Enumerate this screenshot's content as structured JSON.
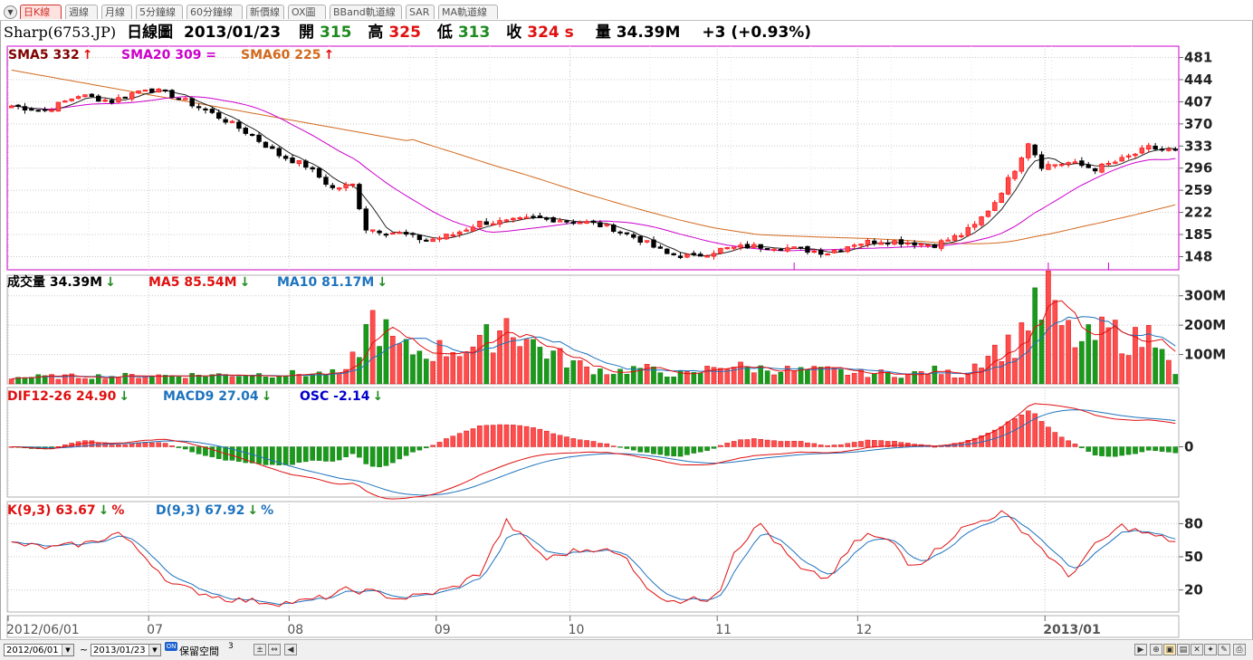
{
  "tabs": [
    "日K線",
    "週線",
    "月線",
    "5分鐘線",
    "60分鐘線",
    "新價線",
    "OX圖",
    "BBand軌道線",
    "SAR",
    "MA軌道線"
  ],
  "active_tab": 0,
  "info": {
    "symbol": "Sharp(6753.JP)",
    "chart_name": "日線圖",
    "date": "2013/01/23",
    "open_label": "開",
    "open": "315",
    "high_label": "高",
    "high": "325",
    "low_label": "低",
    "low": "313",
    "close_label": "收",
    "close": "324 s",
    "volume_label": "量",
    "volume": "34.39M",
    "change": "+3 (+0.93%)"
  },
  "legends": {
    "price": [
      {
        "text": "SMA5 332",
        "color": "#800000",
        "arrow": "up"
      },
      {
        "text": "SMA20 309 =",
        "color": "#cc00cc",
        "arrow": "none"
      },
      {
        "text": "SMA60 225",
        "color": "#d2691e",
        "arrow": "up"
      }
    ],
    "volume": [
      {
        "text": "成交量 34.39M",
        "color": "#000000",
        "arrow": "down"
      },
      {
        "text": "MA5 85.54M",
        "color": "#e01010",
        "arrow": "down"
      },
      {
        "text": "MA10 81.17M",
        "color": "#1e73be",
        "arrow": "down"
      }
    ],
    "macd": [
      {
        "text": "DIF12-26 24.90",
        "color": "#e01010",
        "arrow": "down"
      },
      {
        "text": "MACD9 27.04",
        "color": "#1e73be",
        "arrow": "down"
      },
      {
        "text": "OSC -2.14",
        "color": "#0000cc",
        "arrow": "down"
      }
    ],
    "kd": [
      {
        "text": "K(9,3) 63.67",
        "color": "#e01010",
        "arrow": "down",
        "suffix": "%"
      },
      {
        "text": "D(9,3) 67.92",
        "color": "#1e73be",
        "arrow": "down",
        "suffix": "%"
      }
    ]
  },
  "bottom": {
    "start_date": "2012/06/01",
    "tilde": "~",
    "end_date": "2013/01/23",
    "reserve_label": "保留空間",
    "reserve_value": "3",
    "badge": "ON"
  },
  "colors": {
    "up": "#ff0000",
    "down": "#000000",
    "vol_green": "#1a9a1a",
    "grid": "#c8c8c8",
    "price_border": "#cc00cc"
  },
  "chart_data": [
    {
      "type": "candlestick",
      "title": "Sharp(6753.JP) 日線圖",
      "x_ticks": [
        "2012/06/01",
        "07",
        "08",
        "09",
        "10",
        "11",
        "12",
        "2013/01"
      ],
      "y_ticks": [
        148,
        185,
        222,
        259,
        296,
        333,
        370,
        407,
        444,
        481
      ],
      "ylim": [
        126,
        500
      ],
      "series": [
        {
          "name": "SMA5",
          "values": []
        },
        {
          "name": "SMA20",
          "values": []
        },
        {
          "name": "SMA60",
          "values": []
        }
      ],
      "anchors": [
        [
          0,
          400
        ],
        [
          5,
          392
        ],
        [
          10,
          418
        ],
        [
          15,
          408
        ],
        [
          20,
          430
        ],
        [
          24,
          418
        ],
        [
          28,
          398
        ],
        [
          32,
          376
        ],
        [
          36,
          350
        ],
        [
          40,
          318
        ],
        [
          44,
          300
        ],
        [
          48,
          262
        ],
        [
          51,
          268
        ],
        [
          53,
          195
        ],
        [
          58,
          187
        ],
        [
          62,
          175
        ],
        [
          66,
          185
        ],
        [
          70,
          205
        ],
        [
          74,
          206
        ],
        [
          78,
          212
        ],
        [
          82,
          210
        ],
        [
          86,
          205
        ],
        [
          90,
          195
        ],
        [
          94,
          176
        ],
        [
          98,
          152
        ],
        [
          102,
          148
        ],
        [
          106,
          160
        ],
        [
          110,
          165
        ],
        [
          114,
          165
        ],
        [
          118,
          160
        ],
        [
          122,
          155
        ],
        [
          126,
          170
        ],
        [
          130,
          175
        ],
        [
          134,
          172
        ],
        [
          138,
          168
        ],
        [
          142,
          185
        ],
        [
          144,
          200
        ],
        [
          147,
          240
        ],
        [
          150,
          295
        ],
        [
          152,
          340
        ],
        [
          154,
          300
        ],
        [
          158,
          305
        ],
        [
          162,
          295
        ],
        [
          166,
          310
        ],
        [
          170,
          330
        ],
        [
          174,
          324
        ]
      ],
      "smoothing": "5-day moving average of closes (read from the figure)"
    },
    {
      "type": "bar",
      "title": "成交量",
      "y_ticks": [
        "100M",
        "200M",
        "300M"
      ],
      "ylim": [
        0,
        370
      ],
      "series": [
        {
          "name": "MA5",
          "values": []
        },
        {
          "name": "MA10",
          "values": []
        }
      ],
      "spikes": [
        [
          0,
          25
        ],
        [
          50,
          40
        ],
        [
          54,
          245
        ],
        [
          58,
          130
        ],
        [
          62,
          120
        ],
        [
          66,
          135
        ],
        [
          70,
          140
        ],
        [
          74,
          240
        ],
        [
          78,
          150
        ],
        [
          82,
          100
        ],
        [
          86,
          60
        ],
        [
          90,
          45
        ],
        [
          94,
          60
        ],
        [
          98,
          40
        ],
        [
          102,
          35
        ],
        [
          106,
          75
        ],
        [
          110,
          60
        ],
        [
          114,
          55
        ],
        [
          118,
          50
        ],
        [
          122,
          50
        ],
        [
          126,
          40
        ],
        [
          130,
          40
        ],
        [
          134,
          35
        ],
        [
          138,
          50
        ],
        [
          142,
          30
        ],
        [
          146,
          120
        ],
        [
          150,
          150
        ],
        [
          152,
          260
        ],
        [
          154,
          270
        ],
        [
          155,
          365
        ],
        [
          156,
          240
        ],
        [
          158,
          190
        ],
        [
          160,
          150
        ],
        [
          164,
          200
        ],
        [
          168,
          160
        ],
        [
          172,
          210
        ],
        [
          174,
          30
        ]
      ]
    },
    {
      "type": "bar",
      "title": "MACD",
      "y_ticks": [
        0
      ],
      "series": [
        {
          "name": "DIF12-26",
          "values": []
        },
        {
          "name": "MACD9",
          "values": []
        },
        {
          "name": "OSC",
          "values": []
        }
      ]
    },
    {
      "type": "line",
      "title": "KD",
      "y_ticks": [
        20,
        50,
        80
      ],
      "ylim": [
        0,
        100
      ],
      "series": [
        {
          "name": "K(9,3)",
          "values": []
        },
        {
          "name": "D(9,3)",
          "values": []
        }
      ],
      "anchors": [
        [
          0,
          62
        ],
        [
          6,
          58
        ],
        [
          12,
          63
        ],
        [
          16,
          72
        ],
        [
          20,
          50
        ],
        [
          24,
          25
        ],
        [
          28,
          18
        ],
        [
          32,
          12
        ],
        [
          36,
          10
        ],
        [
          40,
          8
        ],
        [
          44,
          10
        ],
        [
          48,
          15
        ],
        [
          50,
          20
        ],
        [
          54,
          18
        ],
        [
          58,
          12
        ],
        [
          62,
          16
        ],
        [
          66,
          22
        ],
        [
          70,
          35
        ],
        [
          74,
          82
        ],
        [
          76,
          70
        ],
        [
          80,
          48
        ],
        [
          84,
          55
        ],
        [
          88,
          58
        ],
        [
          92,
          48
        ],
        [
          96,
          15
        ],
        [
          100,
          10
        ],
        [
          104,
          12
        ],
        [
          106,
          22
        ],
        [
          108,
          55
        ],
        [
          112,
          80
        ],
        [
          114,
          65
        ],
        [
          118,
          38
        ],
        [
          122,
          30
        ],
        [
          126,
          62
        ],
        [
          128,
          70
        ],
        [
          132,
          62
        ],
        [
          134,
          45
        ],
        [
          136,
          45
        ],
        [
          138,
          55
        ],
        [
          142,
          75
        ],
        [
          146,
          85
        ],
        [
          148,
          90
        ],
        [
          152,
          70
        ],
        [
          156,
          45
        ],
        [
          158,
          32
        ],
        [
          162,
          60
        ],
        [
          166,
          78
        ],
        [
          170,
          70
        ],
        [
          174,
          64
        ]
      ]
    }
  ]
}
